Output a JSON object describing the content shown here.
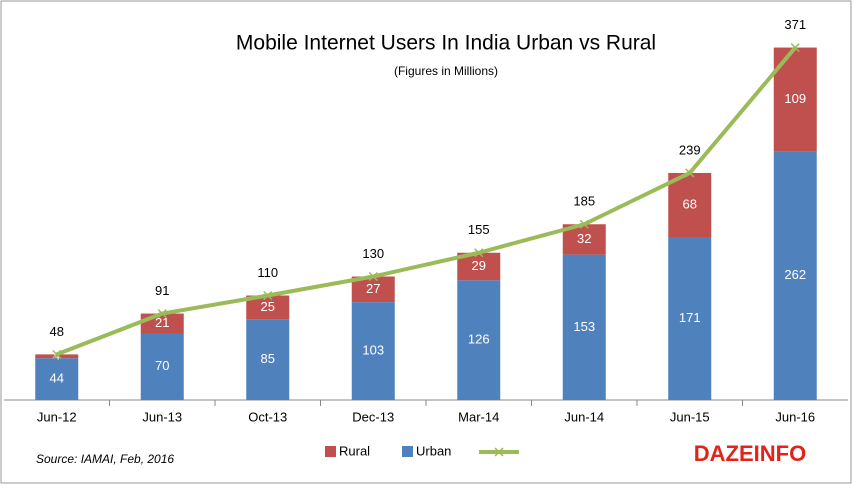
{
  "chart_data": {
    "type": "stacked-bar-line",
    "title": "Mobile Internet Users In India Urban vs Rural",
    "subtitle": "(Figures in Millions)",
    "source": "Source: IAMAI, Feb, 2016",
    "watermark": "DAZEINFO",
    "categories": [
      "Jun-12",
      "Jun-13",
      "Oct-13",
      "Dec-13",
      "Mar-14",
      "Jun-14",
      "Jun-15",
      "Jun-16"
    ],
    "series": [
      {
        "name": "Urban",
        "color": "#4f81bd",
        "values": [
          44,
          70,
          85,
          103,
          126,
          153,
          171,
          262
        ]
      },
      {
        "name": "Rural",
        "color": "#c0504d",
        "values": [
          4,
          21,
          25,
          27,
          29,
          32,
          68,
          109
        ]
      },
      {
        "type": "line",
        "color": "#9bbb59",
        "values": [
          48,
          91,
          110,
          130,
          155,
          185,
          239,
          371
        ]
      }
    ],
    "ylim": [
      0,
      380
    ]
  }
}
